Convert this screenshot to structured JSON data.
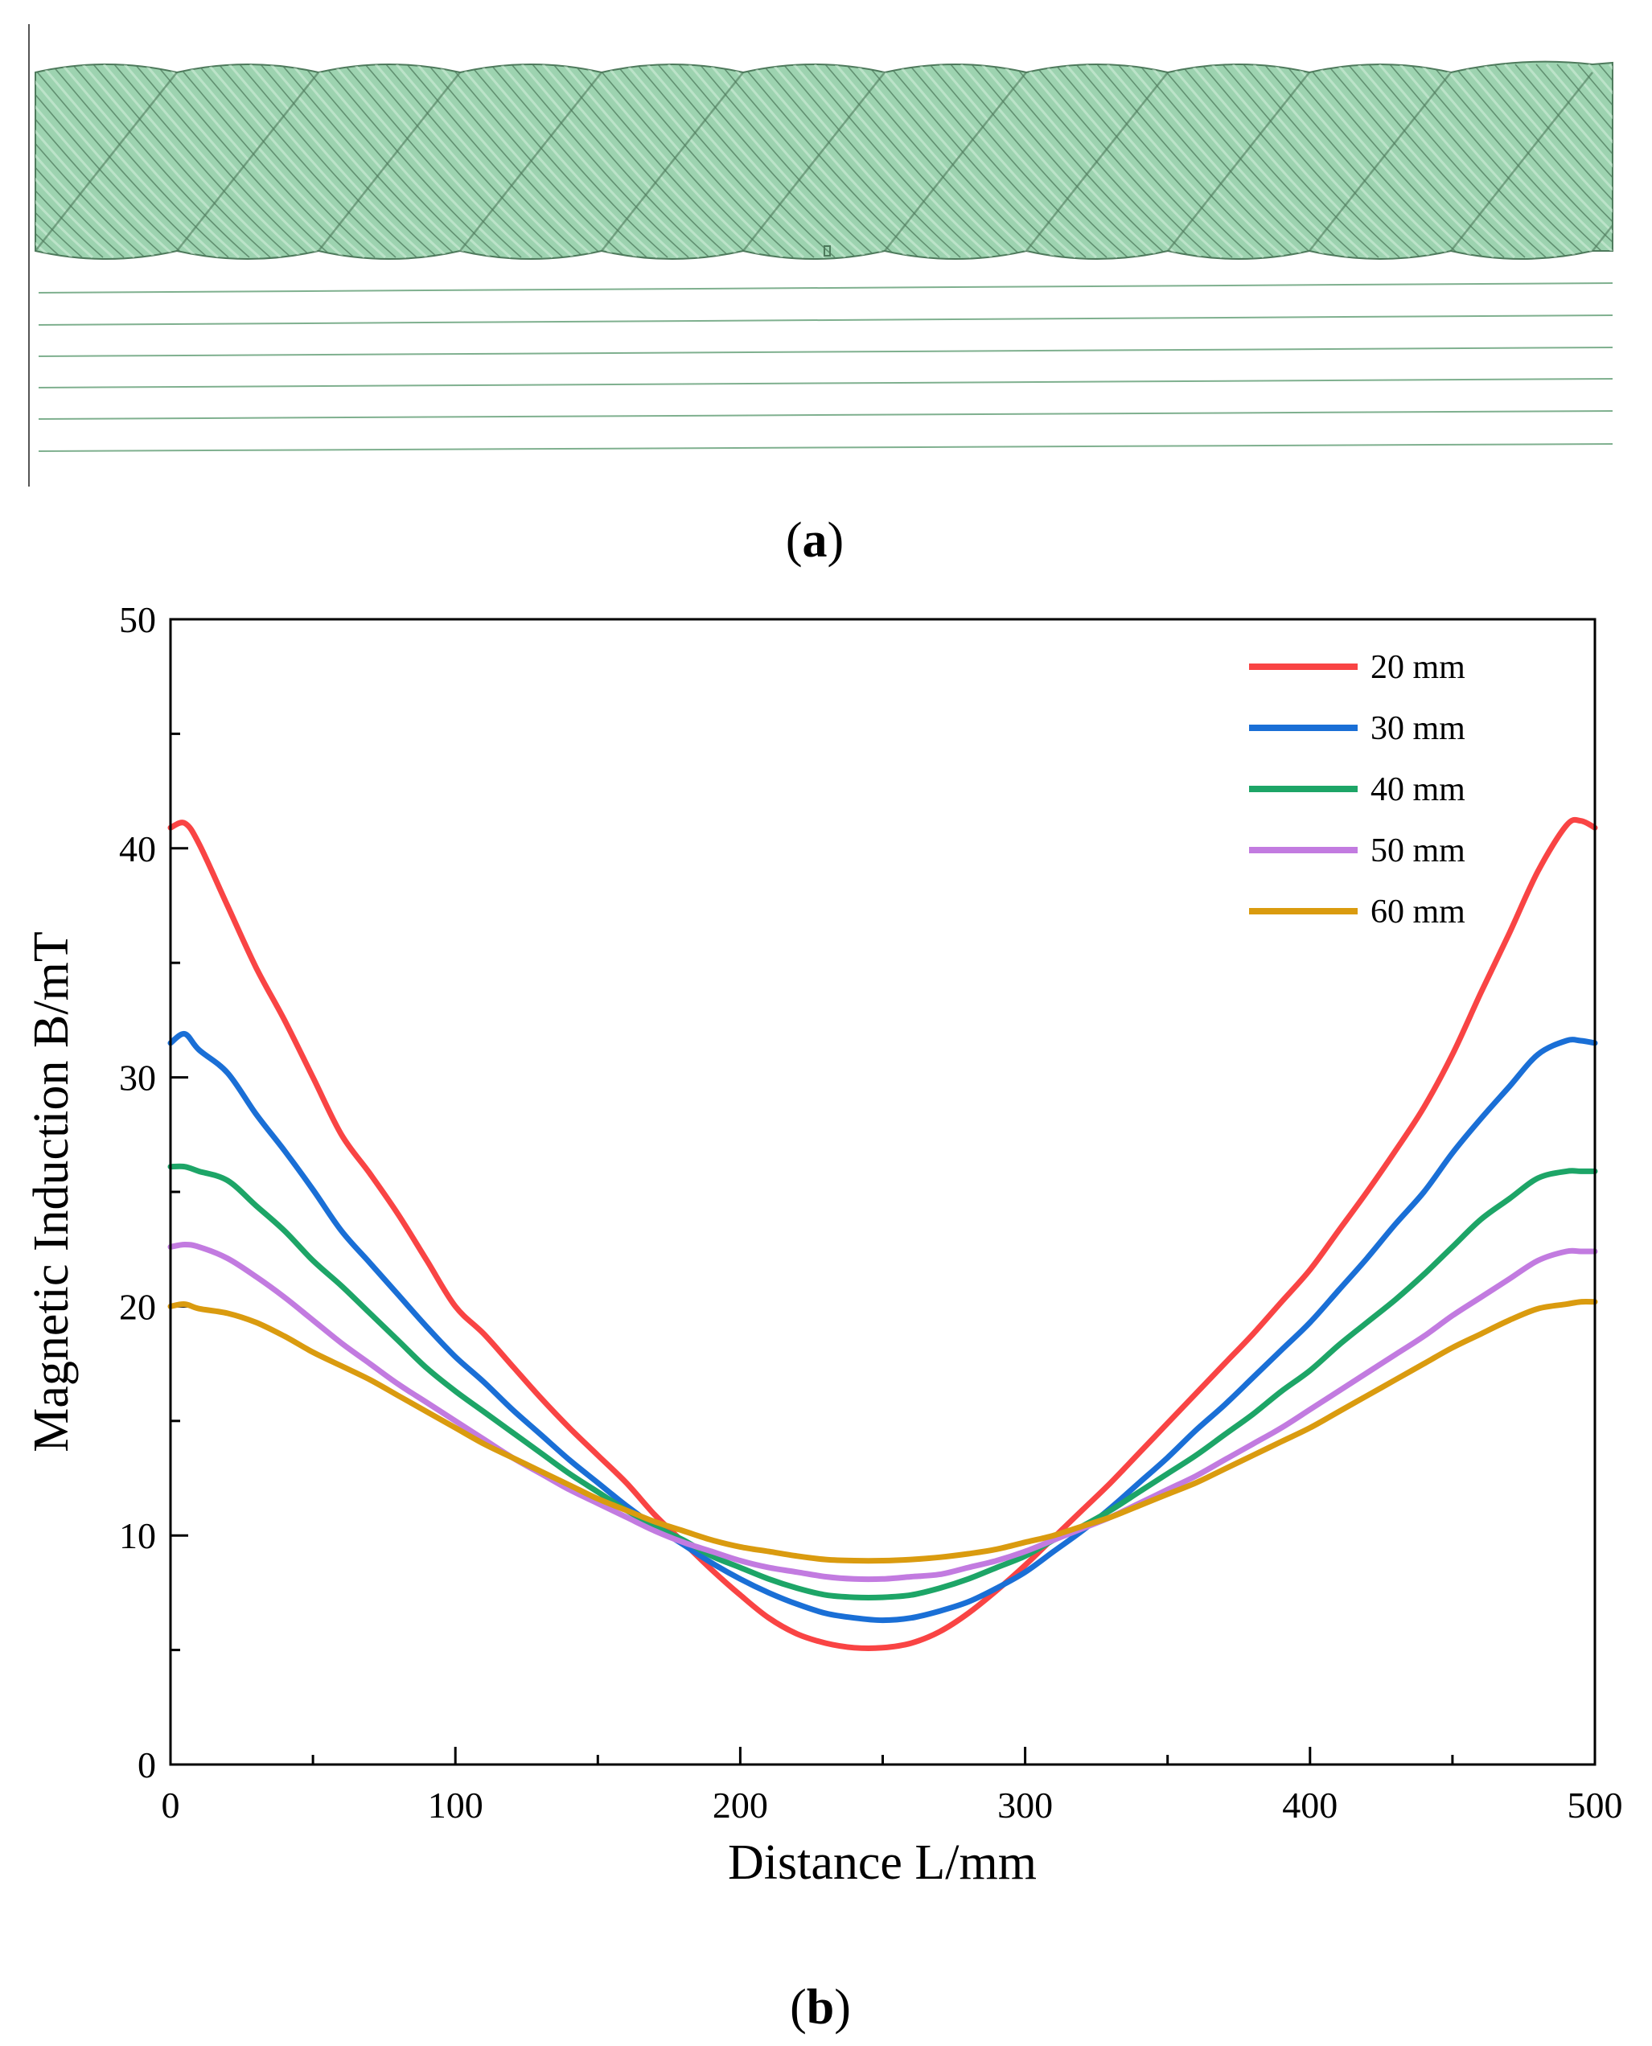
{
  "panel_a": {
    "label_open": "(",
    "label_letter": "a",
    "label_close": ")",
    "rope_color": "#9dd3b0",
    "rope_strand_color": "#4e7a5c",
    "wire_color": "#7fb08f"
  },
  "panel_b": {
    "label_open": "(",
    "label_letter": "b",
    "label_close": ")"
  },
  "chart_data": {
    "type": "line",
    "title": "",
    "xlabel": "Distance L/mm",
    "ylabel": "Magnetic Induction B/mT",
    "xlim": [
      0,
      500
    ],
    "ylim": [
      0,
      50
    ],
    "x_ticks": [
      0,
      100,
      200,
      300,
      400,
      500
    ],
    "y_ticks": [
      0,
      10,
      20,
      30,
      40,
      50
    ],
    "legend_position": "top-right",
    "grid": false,
    "x": [
      0,
      5,
      10,
      20,
      30,
      40,
      50,
      60,
      70,
      80,
      90,
      100,
      110,
      120,
      130,
      140,
      150,
      160,
      170,
      180,
      190,
      200,
      210,
      220,
      230,
      240,
      250,
      260,
      270,
      280,
      290,
      300,
      310,
      320,
      330,
      340,
      350,
      360,
      370,
      380,
      390,
      400,
      410,
      420,
      430,
      440,
      450,
      460,
      470,
      480,
      490,
      495,
      500
    ],
    "series": [
      {
        "name": "20 mm",
        "color": "#f94444",
        "values": [
          40.9,
          41.1,
          40.2,
          37.5,
          34.8,
          32.5,
          30.0,
          27.5,
          25.8,
          24.0,
          22.0,
          20.0,
          18.8,
          17.4,
          16.0,
          14.7,
          13.5,
          12.3,
          10.9,
          9.7,
          8.5,
          7.4,
          6.4,
          5.7,
          5.3,
          5.1,
          5.1,
          5.3,
          5.8,
          6.6,
          7.6,
          8.7,
          9.9,
          11.1,
          12.3,
          13.6,
          14.9,
          16.2,
          17.5,
          18.8,
          20.2,
          21.6,
          23.3,
          25.0,
          26.8,
          28.7,
          31.0,
          33.7,
          36.3,
          39.0,
          41.0,
          41.2,
          40.9
        ]
      },
      {
        "name": "30 mm",
        "color": "#1a6fd6",
        "values": [
          31.5,
          31.9,
          31.2,
          30.2,
          28.4,
          26.8,
          25.1,
          23.3,
          21.9,
          20.5,
          19.1,
          17.8,
          16.7,
          15.5,
          14.4,
          13.3,
          12.3,
          11.3,
          10.4,
          9.6,
          8.8,
          8.1,
          7.5,
          7.0,
          6.6,
          6.4,
          6.3,
          6.4,
          6.7,
          7.1,
          7.7,
          8.4,
          9.3,
          10.2,
          11.2,
          12.3,
          13.4,
          14.6,
          15.7,
          16.9,
          18.1,
          19.3,
          20.7,
          22.1,
          23.6,
          25.0,
          26.7,
          28.2,
          29.6,
          31.0,
          31.6,
          31.6,
          31.5
        ]
      },
      {
        "name": "40 mm",
        "color": "#1da567",
        "values": [
          26.1,
          26.1,
          25.9,
          25.5,
          24.4,
          23.3,
          22.0,
          20.9,
          19.7,
          18.5,
          17.3,
          16.3,
          15.4,
          14.5,
          13.6,
          12.7,
          11.9,
          11.1,
          10.4,
          9.8,
          9.1,
          8.6,
          8.1,
          7.7,
          7.4,
          7.3,
          7.3,
          7.4,
          7.7,
          8.1,
          8.6,
          9.1,
          9.8,
          10.4,
          11.1,
          11.9,
          12.7,
          13.5,
          14.4,
          15.3,
          16.3,
          17.2,
          18.3,
          19.3,
          20.3,
          21.4,
          22.6,
          23.8,
          24.7,
          25.6,
          25.9,
          25.9,
          25.9
        ]
      },
      {
        "name": "50 mm",
        "color": "#c27be0",
        "values": [
          22.6,
          22.7,
          22.6,
          22.1,
          21.3,
          20.4,
          19.4,
          18.4,
          17.5,
          16.6,
          15.8,
          15.0,
          14.2,
          13.4,
          12.7,
          12.0,
          11.4,
          10.8,
          10.2,
          9.7,
          9.3,
          8.9,
          8.6,
          8.4,
          8.2,
          8.1,
          8.1,
          8.2,
          8.3,
          8.6,
          8.9,
          9.3,
          9.8,
          10.3,
          10.8,
          11.4,
          12.0,
          12.6,
          13.3,
          14.0,
          14.7,
          15.5,
          16.3,
          17.1,
          17.9,
          18.7,
          19.6,
          20.4,
          21.2,
          22.0,
          22.4,
          22.4,
          22.4
        ]
      },
      {
        "name": "60 mm",
        "color": "#da9b0f",
        "values": [
          20.0,
          20.1,
          19.9,
          19.7,
          19.3,
          18.7,
          18.0,
          17.4,
          16.8,
          16.1,
          15.4,
          14.7,
          14.0,
          13.4,
          12.8,
          12.2,
          11.6,
          11.1,
          10.6,
          10.2,
          9.8,
          9.5,
          9.3,
          9.1,
          8.95,
          8.9,
          8.9,
          8.95,
          9.05,
          9.2,
          9.4,
          9.7,
          10.0,
          10.4,
          10.8,
          11.3,
          11.8,
          12.3,
          12.9,
          13.5,
          14.1,
          14.7,
          15.4,
          16.1,
          16.8,
          17.5,
          18.2,
          18.8,
          19.4,
          19.9,
          20.1,
          20.2,
          20.2
        ]
      }
    ]
  }
}
